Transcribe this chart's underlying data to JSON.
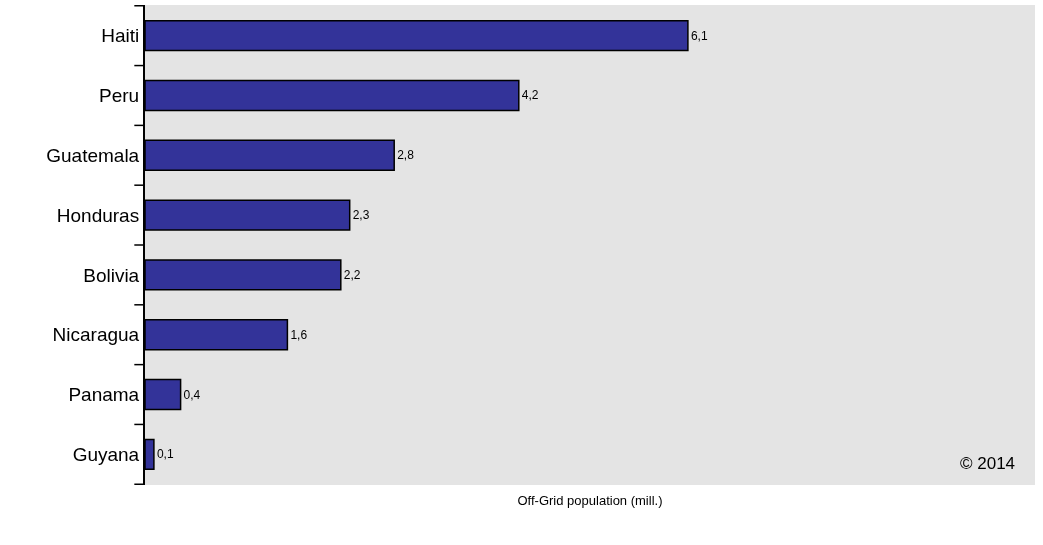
{
  "chart_data": {
    "type": "bar",
    "orientation": "horizontal",
    "xlabel": "Off-Grid population (mill.)",
    "categories": [
      "Haiti",
      "Peru",
      "Guatemala",
      "Honduras",
      "Bolivia",
      "Nicaragua",
      "Panama",
      "Guyana"
    ],
    "values": [
      6.1,
      4.2,
      2.8,
      2.3,
      2.2,
      1.6,
      0.4,
      0.1
    ],
    "value_labels": [
      "6,1",
      "4,2",
      "2,8",
      "2,3",
      "2,2",
      "1,6",
      "0,4",
      "0,1"
    ],
    "color": "#333399",
    "xlim": [
      0,
      10
    ],
    "tick_labels": "y",
    "annotations": [
      "© 2014"
    ]
  }
}
